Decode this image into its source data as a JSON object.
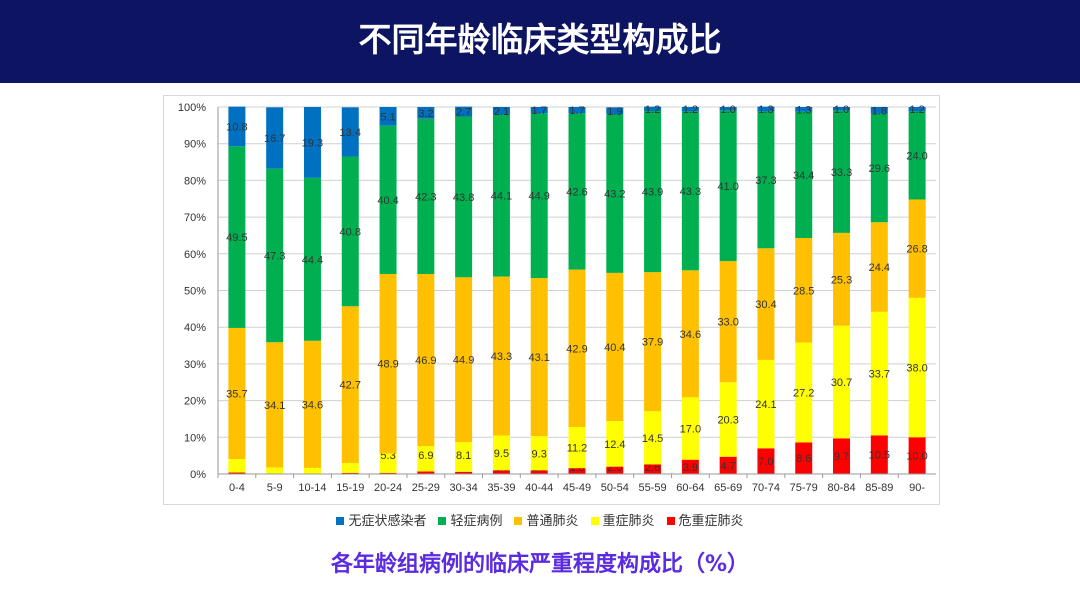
{
  "header": {
    "title": "不同年龄临床类型构成比"
  },
  "subtitle": "各年龄组病例的临床严重程度构成比（%）",
  "chart_data": {
    "type": "bar",
    "stacked": true,
    "grid": true,
    "legend_position": "bottom",
    "categories": [
      "0-4",
      "5-9",
      "10-14",
      "15-19",
      "20-24",
      "25-29",
      "30-34",
      "35-39",
      "40-44",
      "45-49",
      "50-54",
      "55-59",
      "60-64",
      "65-69",
      "70-74",
      "75-79",
      "80-84",
      "85-89",
      "90-"
    ],
    "ylim": [
      0,
      100
    ],
    "yticks": [
      "0%",
      "10%",
      "20%",
      "30%",
      "40%",
      "50%",
      "60%",
      "70%",
      "80%",
      "90%",
      "100%"
    ],
    "series": [
      {
        "name": "危重症肺炎",
        "color": "#ff0000",
        "values": [
          0.4,
          0.0,
          0.0,
          0.3,
          0.3,
          0.7,
          0.6,
          1.0,
          1.0,
          1.6,
          2.0,
          2.6,
          3.9,
          4.7,
          7.0,
          8.6,
          9.7,
          10.5,
          10.0
        ]
      },
      {
        "name": "重症肺炎",
        "color": "#ffff00",
        "values": [
          3.7,
          1.8,
          1.7,
          2.7,
          5.3,
          6.9,
          8.1,
          9.5,
          9.3,
          11.2,
          12.4,
          14.5,
          17.0,
          20.3,
          24.1,
          27.2,
          30.7,
          33.7,
          38.0
        ]
      },
      {
        "name": "普通肺炎",
        "color": "#ffc000",
        "values": [
          35.7,
          34.1,
          34.6,
          42.7,
          48.9,
          46.9,
          44.9,
          43.3,
          43.1,
          42.9,
          40.4,
          37.9,
          34.6,
          33.0,
          30.4,
          28.5,
          25.3,
          24.4,
          26.8
        ]
      },
      {
        "name": "轻症病例",
        "color": "#00b050",
        "values": [
          49.5,
          47.3,
          44.4,
          40.8,
          40.4,
          42.3,
          43.8,
          44.1,
          44.9,
          42.6,
          43.2,
          43.9,
          43.3,
          41.0,
          37.3,
          34.4,
          33.3,
          29.6,
          24.0
        ]
      },
      {
        "name": "无症状感染者",
        "color": "#0070c0",
        "values": [
          10.8,
          16.7,
          19.3,
          13.4,
          5.1,
          3.2,
          2.7,
          2.1,
          1.7,
          1.7,
          1.9,
          1.2,
          1.2,
          1.0,
          1.3,
          1.3,
          1.0,
          1.8,
          1.2
        ]
      }
    ],
    "legend_order": [
      4,
      3,
      2,
      1,
      0
    ]
  }
}
